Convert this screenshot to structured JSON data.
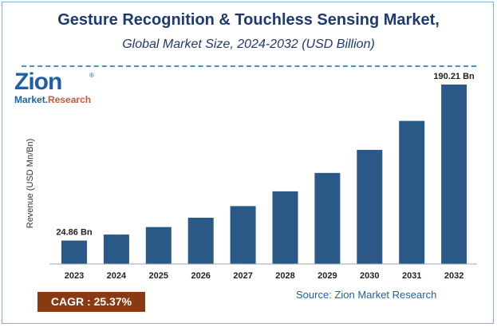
{
  "title": "Gesture Recognition & Touchless Sensing Market,",
  "subtitle": "Global Market Size, 2024-2032 (USD Billion)",
  "logo": {
    "word": "Zion",
    "sub_part1": "Market.",
    "sub_part2": "Research",
    "reg": "®"
  },
  "cagr": "CAGR : 25.37%",
  "source": "Source: Zion Market Research",
  "colors": {
    "bar": "#2a5987",
    "title": "#1f3a6e",
    "cagr_bg": "#8a3a12"
  },
  "chart_data": {
    "type": "bar",
    "title": "Gesture Recognition & Touchless Sensing Market,",
    "subtitle": "Global Market Size, 2024-2032 (USD Billion)",
    "xlabel": "",
    "ylabel": "Revenue (USD Mn/Bn)",
    "categories": [
      "2023",
      "2024",
      "2025",
      "2026",
      "2027",
      "2028",
      "2029",
      "2030",
      "2031",
      "2032"
    ],
    "values": [
      24.86,
      31.2,
      39.1,
      49.0,
      61.4,
      77.0,
      96.5,
      121.0,
      151.7,
      190.21
    ],
    "data_labels": [
      "24.86 Bn",
      "",
      "",
      "",
      "",
      "",
      "",
      "",
      "",
      "190.21 Bn"
    ],
    "ylim": [
      0,
      190.21
    ],
    "grid": false,
    "legend": "none"
  }
}
